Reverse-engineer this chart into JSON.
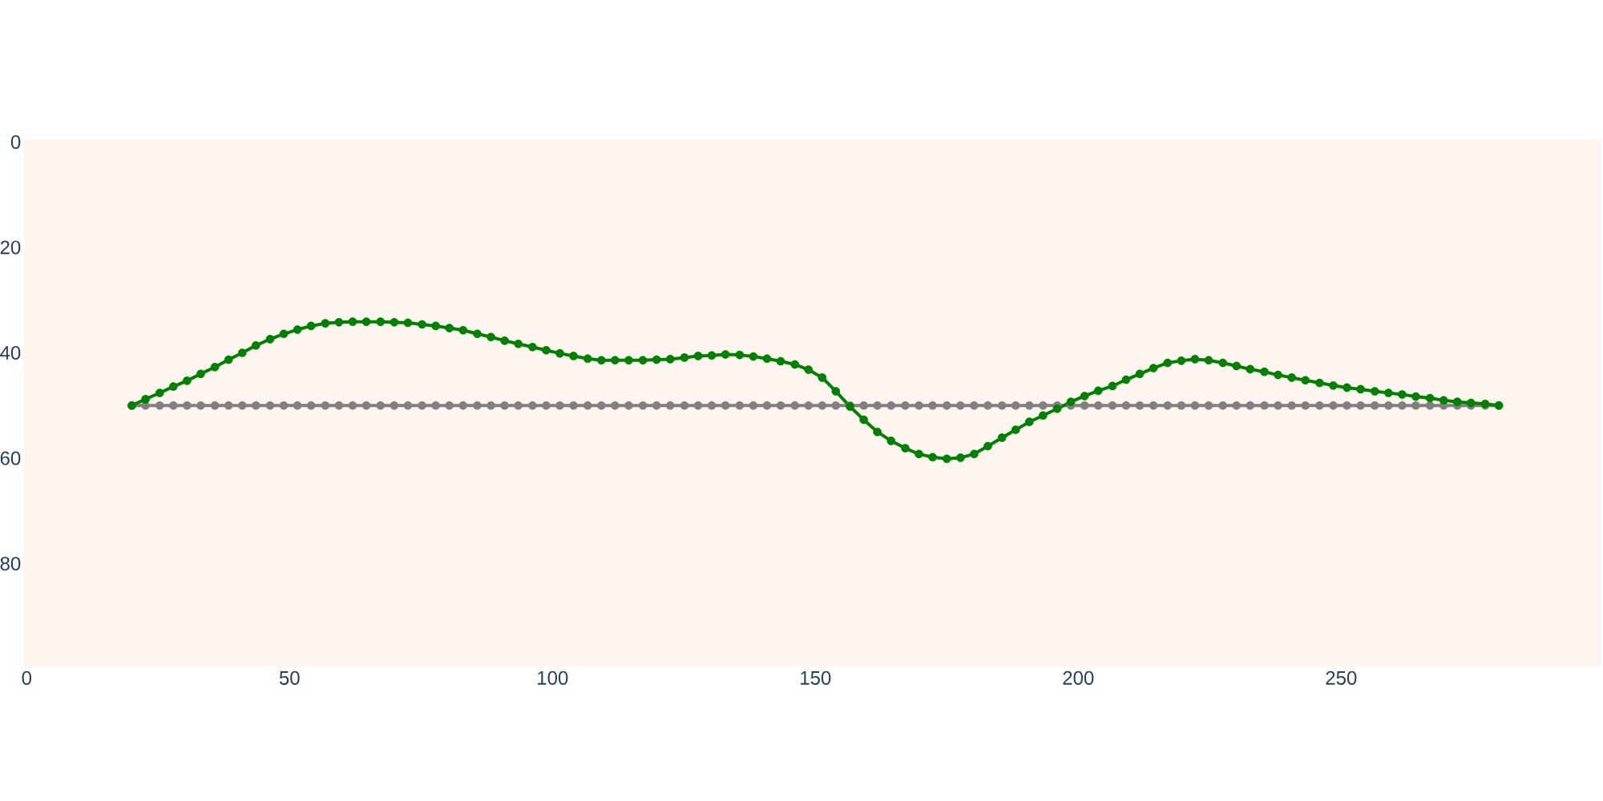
{
  "chart_data": {
    "type": "line",
    "x": [
      20.0,
      22.6,
      25.3,
      27.9,
      30.5,
      33.1,
      35.8,
      38.4,
      41.0,
      43.6,
      46.3,
      48.9,
      51.5,
      54.1,
      56.8,
      59.4,
      62.0,
      64.6,
      67.3,
      69.9,
      72.5,
      75.2,
      77.8,
      80.4,
      83.0,
      85.7,
      88.3,
      90.9,
      93.5,
      96.2,
      98.8,
      101.4,
      104.0,
      106.7,
      109.3,
      111.9,
      114.5,
      117.2,
      119.8,
      122.4,
      125.1,
      127.7,
      130.3,
      132.9,
      135.6,
      138.2,
      140.8,
      143.4,
      146.1,
      148.7,
      151.3,
      153.9,
      156.6,
      159.2,
      161.8,
      164.4,
      167.1,
      169.7,
      172.3,
      175.0,
      177.6,
      180.2,
      182.8,
      185.5,
      188.1,
      190.7,
      193.3,
      196.0,
      198.6,
      201.2,
      203.8,
      206.5,
      209.1,
      211.7,
      214.3,
      217.0,
      219.6,
      222.2,
      224.8,
      227.5,
      230.1,
      232.7,
      235.4,
      238.0,
      240.6,
      243.2,
      245.9,
      248.5,
      251.1,
      253.7,
      256.4,
      259.0,
      261.6,
      264.2,
      266.9,
      269.5,
      272.1,
      274.7,
      277.4,
      280.0
    ],
    "series": [
      {
        "color": "#808080",
        "values": [
          50,
          50,
          50,
          50,
          50,
          50,
          50,
          50,
          50,
          50,
          50,
          50,
          50,
          50,
          50,
          50,
          50,
          50,
          50,
          50,
          50,
          50,
          50,
          50,
          50,
          50,
          50,
          50,
          50,
          50,
          50,
          50,
          50,
          50,
          50,
          50,
          50,
          50,
          50,
          50,
          50,
          50,
          50,
          50,
          50,
          50,
          50,
          50,
          50,
          50,
          50,
          50,
          50,
          50,
          50,
          50,
          50,
          50,
          50,
          50,
          50,
          50,
          50,
          50,
          50,
          50,
          50,
          50,
          50,
          50,
          50,
          50,
          50,
          50,
          50,
          50,
          50,
          50,
          50,
          50,
          50,
          50,
          50,
          50,
          50,
          50,
          50,
          50,
          50,
          50,
          50,
          50,
          50,
          50,
          50,
          50,
          50,
          50,
          50,
          50
        ]
      },
      {
        "color": "#008000",
        "values": [
          50.0,
          48.8,
          47.6,
          46.4,
          45.3,
          44.0,
          42.7,
          41.3,
          40.0,
          38.6,
          37.4,
          36.4,
          35.6,
          34.9,
          34.4,
          34.2,
          34.1,
          34.1,
          34.1,
          34.2,
          34.3,
          34.6,
          34.9,
          35.3,
          35.7,
          36.4,
          37.0,
          37.7,
          38.3,
          38.9,
          39.5,
          40.1,
          40.6,
          41.1,
          41.4,
          41.4,
          41.4,
          41.4,
          41.3,
          41.2,
          40.9,
          40.6,
          40.5,
          40.3,
          40.4,
          40.7,
          41.1,
          41.6,
          42.2,
          43.2,
          44.7,
          47.3,
          50.2,
          52.7,
          55.0,
          56.7,
          58.1,
          59.2,
          59.8,
          60.1,
          59.9,
          59.2,
          57.7,
          56.1,
          54.6,
          53.1,
          51.9,
          50.6,
          49.3,
          48.2,
          47.2,
          46.3,
          45.1,
          44.0,
          42.9,
          41.9,
          41.5,
          41.2,
          41.4,
          41.9,
          42.5,
          43.1,
          43.6,
          44.2,
          44.7,
          45.2,
          45.7,
          46.2,
          46.6,
          46.9,
          47.3,
          47.6,
          47.9,
          48.3,
          48.6,
          49.0,
          49.3,
          49.5,
          49.7,
          50.0
        ]
      }
    ],
    "xlim": [
      -0.5,
      299.5
    ],
    "ylim": [
      99.5,
      -0.5
    ],
    "xticks": [
      0,
      50,
      100,
      150,
      200,
      250
    ],
    "yticks": [
      0,
      20,
      40,
      60,
      80
    ],
    "marker": "circle",
    "line_style": "solid"
  }
}
